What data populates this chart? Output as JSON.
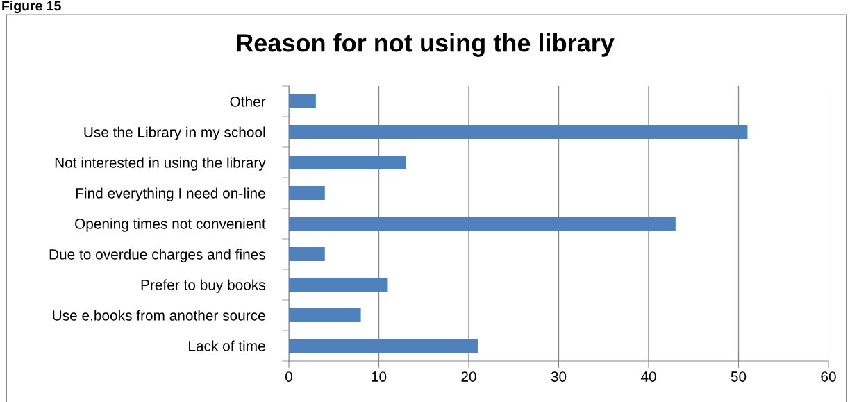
{
  "chart_data": {
    "type": "bar",
    "orientation": "horizontal",
    "title": "Reason for not using the library",
    "annotations": [
      "Figure 15"
    ],
    "categories": [
      "Other",
      "Use the Library in my school",
      "Not interested in using the library",
      "Find everything I need on-line",
      "Opening times not convenient",
      "Due to overdue charges and fines",
      "Prefer to buy books",
      "Use e.books from another source",
      "Lack of time"
    ],
    "values": [
      3,
      51,
      13,
      4,
      43,
      4,
      11,
      8,
      21
    ],
    "color": "#4f81bd",
    "xlim": [
      0,
      60
    ],
    "xticks": [
      0,
      10,
      20,
      30,
      40,
      50,
      60
    ],
    "grid": "x"
  }
}
